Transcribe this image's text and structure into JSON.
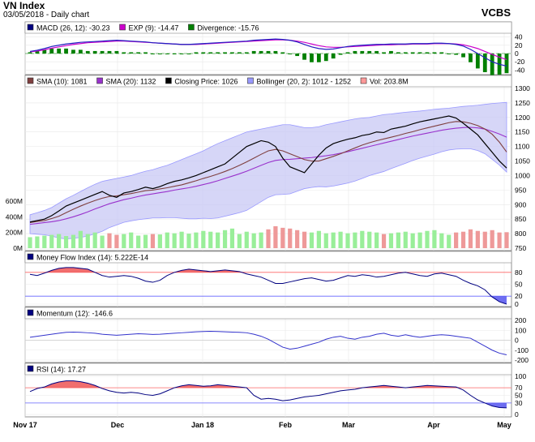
{
  "header": {
    "title": "VN Index",
    "subtitle": "03/05/2018 - Daily chart",
    "brand": "VCBS"
  },
  "x_axis": {
    "labels": [
      "Nov 17",
      "Dec",
      "Jan 18",
      "Feb",
      "Mar",
      "Apr",
      "May"
    ]
  },
  "chart_data": [
    {
      "type": "line",
      "panel": "macd",
      "legend": [
        {
          "label": "MACD (26, 12): -30.23",
          "color": "#000080"
        },
        {
          "label": "EXP (9): -14.47",
          "color": "#cc00cc"
        },
        {
          "label": "Divergence: -15.76",
          "color": "#008000"
        }
      ],
      "ticks": [
        "40",
        "20",
        "0",
        "-20",
        "-40"
      ],
      "ylim": [
        -45,
        45
      ],
      "series": [
        {
          "name": "MACD (26, 12)",
          "color": "#2020c0",
          "values": [
            5,
            8,
            12,
            17,
            20,
            23,
            25,
            27,
            28,
            29,
            30,
            31,
            32,
            31,
            30,
            29,
            28,
            26,
            25,
            24,
            23,
            22,
            22,
            23,
            24,
            25,
            26,
            27,
            28,
            29,
            30,
            32,
            33,
            34,
            35,
            34,
            32,
            28,
            22,
            16,
            12,
            10,
            11,
            14,
            17,
            19,
            20,
            21,
            22,
            22,
            23,
            23,
            23,
            24,
            24,
            24,
            25,
            25,
            24,
            22,
            18,
            10,
            0,
            -10,
            -20,
            -26,
            -30.23
          ]
        },
        {
          "name": "EXP (9)",
          "color": "#cc00cc",
          "values": [
            4,
            6,
            9,
            13,
            16,
            19,
            22,
            24,
            26,
            27,
            28,
            29,
            30,
            30,
            29,
            28,
            27,
            26,
            25,
            24,
            23,
            22,
            22,
            22,
            23,
            24,
            25,
            26,
            27,
            28,
            29,
            30,
            31,
            32,
            33,
            33,
            32,
            30,
            27,
            23,
            19,
            16,
            15,
            15,
            16,
            17,
            18,
            19,
            20,
            21,
            21,
            22,
            22,
            23,
            23,
            23,
            24,
            24,
            24,
            23,
            21,
            17,
            12,
            5,
            -2,
            -9,
            -14.47
          ]
        },
        {
          "name": "Divergence",
          "color": "#008000",
          "values": [
            1,
            2,
            3,
            4,
            4,
            4,
            3,
            3,
            2,
            2,
            2,
            2,
            2,
            1,
            1,
            1,
            1,
            0,
            0,
            0,
            0,
            0,
            0,
            1,
            1,
            1,
            1,
            1,
            1,
            1,
            1,
            2,
            2,
            2,
            2,
            1,
            0,
            -2,
            -5,
            -7,
            -7,
            -6,
            -4,
            -1,
            1,
            2,
            2,
            2,
            2,
            1,
            2,
            1,
            1,
            1,
            1,
            1,
            1,
            1,
            0,
            -1,
            -3,
            -7,
            -12,
            -15,
            -18,
            -17,
            -15.76
          ]
        }
      ]
    },
    {
      "type": "line",
      "panel": "price",
      "legend": [
        {
          "label": "SMA (10): 1081",
          "color": "#7f3f3f"
        },
        {
          "label": "SMA (20): 1132",
          "color": "#9932cc"
        },
        {
          "label": "Closing Price: 1026",
          "color": "#000000"
        },
        {
          "label": "Bollinger (20, 2): 1012 - 1252",
          "color": "#9999ff"
        },
        {
          "label": "Vol: 203.8M",
          "color": "#ff9999"
        }
      ],
      "ticks": [
        "1300",
        "1250",
        "1200",
        "1150",
        "1100",
        "1050",
        "1000",
        "950",
        "900",
        "850",
        "800",
        "750"
      ],
      "vol_ticks": [
        "600M",
        "400M",
        "200M",
        "0M"
      ],
      "ylim": [
        750,
        1300
      ],
      "vol_max": 600,
      "series": [
        {
          "name": "Closing Price",
          "color": "#000000",
          "values": [
            840,
            845,
            850,
            862,
            878,
            895,
            905,
            915,
            925,
            935,
            945,
            932,
            925,
            940,
            945,
            952,
            960,
            955,
            962,
            972,
            980,
            985,
            992,
            1000,
            1010,
            1020,
            1030,
            1040,
            1060,
            1080,
            1100,
            1110,
            1120,
            1115,
            1100,
            1060,
            1030,
            1020,
            1010,
            1040,
            1070,
            1095,
            1110,
            1118,
            1125,
            1130,
            1138,
            1142,
            1150,
            1148,
            1160,
            1165,
            1170,
            1178,
            1185,
            1190,
            1195,
            1200,
            1205,
            1198,
            1180,
            1160,
            1140,
            1110,
            1080,
            1050,
            1026
          ]
        },
        {
          "name": "SMA (10)",
          "color": "#7f3f3f",
          "values": [
            838,
            842,
            845,
            852,
            860,
            872,
            884,
            895,
            905,
            914,
            922,
            928,
            930,
            934,
            938,
            943,
            948,
            950,
            954,
            958,
            963,
            968,
            975,
            982,
            990,
            997,
            1005,
            1014,
            1024,
            1035,
            1047,
            1060,
            1073,
            1085,
            1090,
            1085,
            1075,
            1065,
            1055,
            1050,
            1050,
            1058,
            1066,
            1075,
            1085,
            1095,
            1105,
            1113,
            1120,
            1126,
            1132,
            1138,
            1145,
            1151,
            1158,
            1164,
            1170,
            1176,
            1182,
            1186,
            1185,
            1180,
            1172,
            1160,
            1142,
            1115,
            1081
          ]
        },
        {
          "name": "SMA (20)",
          "color": "#9932cc",
          "values": [
            832,
            835,
            838,
            841,
            845,
            851,
            858,
            866,
            875,
            885,
            894,
            903,
            910,
            917,
            922,
            928,
            933,
            937,
            941,
            945,
            950,
            954,
            958,
            963,
            969,
            975,
            982,
            990,
            998,
            1006,
            1015,
            1025,
            1035,
            1045,
            1052,
            1055,
            1056,
            1058,
            1060,
            1062,
            1065,
            1068,
            1072,
            1077,
            1082,
            1088,
            1094,
            1100,
            1106,
            1112,
            1118,
            1124,
            1130,
            1136,
            1141,
            1146,
            1151,
            1156,
            1160,
            1163,
            1165,
            1166,
            1164,
            1160,
            1152,
            1143,
            1132
          ]
        },
        {
          "name": "Bollinger Upper",
          "color": "#9999ff",
          "values": [
            865,
            872,
            880,
            890,
            905,
            920,
            932,
            945,
            958,
            970,
            980,
            985,
            990,
            995,
            1000,
            1008,
            1015,
            1020,
            1028,
            1035,
            1045,
            1055,
            1065,
            1075,
            1085,
            1098,
            1110,
            1120,
            1130,
            1140,
            1150,
            1155,
            1160,
            1165,
            1170,
            1175,
            1175,
            1170,
            1165,
            1165,
            1168,
            1175,
            1180,
            1185,
            1190,
            1195,
            1198,
            1200,
            1205,
            1210,
            1212,
            1215,
            1218,
            1220,
            1222,
            1225,
            1228,
            1230,
            1232,
            1235,
            1238,
            1240,
            1242,
            1245,
            1248,
            1250,
            1252
          ]
        },
        {
          "name": "Bollinger Lower",
          "color": "#9999ff",
          "values": [
            800,
            798,
            796,
            792,
            785,
            782,
            784,
            787,
            792,
            800,
            808,
            821,
            830,
            839,
            844,
            848,
            851,
            854,
            854,
            855,
            855,
            853,
            851,
            851,
            853,
            852,
            854,
            860,
            866,
            872,
            880,
            895,
            910,
            925,
            934,
            935,
            937,
            946,
            955,
            959,
            962,
            961,
            964,
            969,
            974,
            981,
            990,
            1000,
            1007,
            1014,
            1024,
            1033,
            1042,
            1052,
            1060,
            1067,
            1074,
            1082,
            1088,
            1091,
            1092,
            1092,
            1086,
            1075,
            1056,
            1036,
            1012
          ]
        },
        {
          "name": "Vol",
          "color": "#ff9999",
          "values": [
            140,
            150,
            160,
            170,
            180,
            155,
            170,
            220,
            180,
            200,
            160,
            190,
            170,
            180,
            200,
            160,
            170,
            180,
            175,
            200,
            190,
            210,
            185,
            200,
            220,
            210,
            200,
            230,
            250,
            180,
            210,
            190,
            200,
            240,
            280,
            260,
            250,
            230,
            210,
            200,
            220,
            190,
            200,
            210,
            190,
            200,
            220,
            210,
            200,
            180,
            190,
            200,
            210,
            190,
            200,
            220,
            230,
            190,
            170,
            200,
            210,
            240,
            220,
            210,
            230,
            200,
            203.8
          ]
        }
      ]
    },
    {
      "type": "area",
      "panel": "mfi",
      "legend": [
        {
          "label": "Money Flow Index (14): 5.222E-14",
          "color": "#000080"
        }
      ],
      "ticks": [
        "80",
        "50",
        "20",
        "0"
      ],
      "ylim": [
        0,
        100
      ],
      "thresholds": [
        80,
        20
      ],
      "series": [
        {
          "name": "Money Flow Index (14)",
          "color": "#000080",
          "values": [
            75,
            72,
            78,
            85,
            90,
            92,
            92,
            90,
            88,
            80,
            72,
            68,
            70,
            72,
            70,
            65,
            58,
            55,
            60,
            72,
            80,
            85,
            88,
            86,
            84,
            82,
            84,
            86,
            84,
            82,
            76,
            72,
            68,
            60,
            52,
            52,
            56,
            60,
            64,
            66,
            62,
            58,
            60,
            66,
            72,
            70,
            74,
            72,
            68,
            70,
            74,
            78,
            80,
            76,
            72,
            70,
            76,
            78,
            74,
            70,
            60,
            52,
            46,
            36,
            18,
            6,
            0
          ]
        }
      ]
    },
    {
      "type": "line",
      "panel": "momentum",
      "legend": [
        {
          "label": "Momentum (12): -146.6",
          "color": "#000080"
        }
      ],
      "ticks": [
        "200",
        "100",
        "0",
        "-100",
        "-200"
      ],
      "ylim": [
        -200,
        200
      ],
      "series": [
        {
          "name": "Momentum (12)",
          "color": "#3333cc",
          "values": [
            30,
            40,
            50,
            60,
            70,
            80,
            82,
            80,
            75,
            70,
            60,
            55,
            50,
            55,
            60,
            65,
            62,
            58,
            60,
            65,
            70,
            75,
            80,
            85,
            88,
            90,
            88,
            85,
            82,
            80,
            75,
            60,
            40,
            10,
            -30,
            -70,
            -90,
            -80,
            -60,
            -40,
            -20,
            10,
            30,
            40,
            20,
            10,
            30,
            40,
            60,
            70,
            50,
            40,
            55,
            40,
            30,
            40,
            50,
            55,
            50,
            40,
            30,
            20,
            -20,
            -60,
            -100,
            -130,
            -146.6
          ]
        }
      ]
    },
    {
      "type": "area",
      "panel": "rsi",
      "legend": [
        {
          "label": "RSI (14): 17.27",
          "color": "#000080"
        }
      ],
      "ticks": [
        "100",
        "70",
        "50",
        "30",
        "0"
      ],
      "ylim": [
        0,
        100
      ],
      "thresholds": [
        70,
        30
      ],
      "series": [
        {
          "name": "RSI (14)",
          "color": "#000080",
          "values": [
            60,
            68,
            72,
            80,
            85,
            88,
            88,
            86,
            82,
            76,
            68,
            62,
            58,
            56,
            58,
            56,
            52,
            50,
            54,
            62,
            70,
            75,
            78,
            76,
            74,
            75,
            78,
            76,
            74,
            72,
            70,
            50,
            40,
            42,
            40,
            36,
            38,
            42,
            46,
            48,
            50,
            54,
            58,
            62,
            64,
            66,
            70,
            72,
            74,
            76,
            74,
            72,
            70,
            72,
            74,
            76,
            75,
            74,
            73,
            72,
            64,
            50,
            38,
            30,
            22,
            18,
            17.27
          ]
        }
      ]
    }
  ]
}
